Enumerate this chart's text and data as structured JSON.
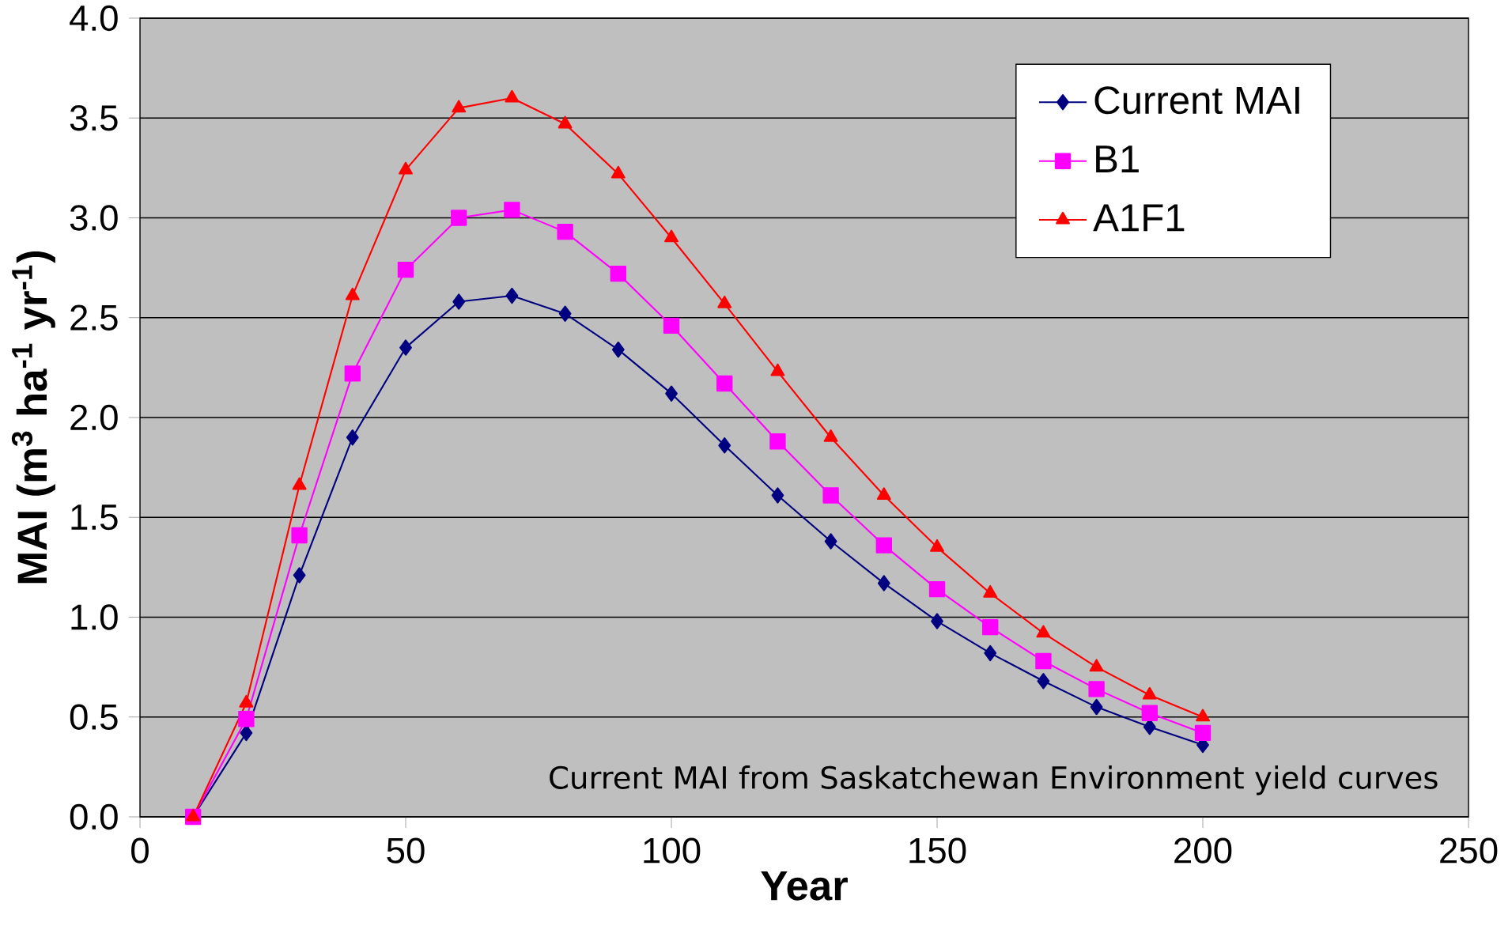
{
  "chart_data": {
    "type": "line",
    "xlabel": "Year",
    "ylabel": "MAI (m$^{3}$ ha$^{-1}$ yr$^{-1}$)",
    "x": [
      10,
      20,
      30,
      40,
      50,
      60,
      70,
      80,
      90,
      100,
      110,
      120,
      130,
      140,
      150,
      160,
      170,
      180,
      190,
      200
    ],
    "series": [
      {
        "name": "Current MAI",
        "color": "#000080",
        "marker": "diamond",
        "values": [
          0.0,
          0.42,
          1.21,
          1.9,
          2.35,
          2.58,
          2.61,
          2.52,
          2.34,
          2.12,
          1.86,
          1.61,
          1.38,
          1.17,
          0.98,
          0.82,
          0.68,
          0.55,
          0.45,
          0.36
        ]
      },
      {
        "name": "B1",
        "color": "#ff00ff",
        "marker": "square",
        "values": [
          0.0,
          0.49,
          1.41,
          2.22,
          2.74,
          3.0,
          3.04,
          2.93,
          2.72,
          2.46,
          2.17,
          1.88,
          1.61,
          1.36,
          1.14,
          0.95,
          0.78,
          0.64,
          0.52,
          0.42
        ]
      },
      {
        "name": "A1F1",
        "color": "#ff0000",
        "marker": "triangle",
        "values": [
          0.0,
          0.57,
          1.66,
          2.61,
          3.24,
          3.55,
          3.6,
          3.47,
          3.22,
          2.9,
          2.57,
          2.23,
          1.9,
          1.61,
          1.35,
          1.12,
          0.92,
          0.75,
          0.61,
          0.5
        ]
      }
    ],
    "xlim": [
      0,
      250
    ],
    "xticks": [
      0,
      50,
      100,
      150,
      200,
      250
    ],
    "ylim": [
      0,
      4
    ],
    "yticks": [
      {
        "value": 0,
        "label": "0.0"
      },
      {
        "value": 0.5,
        "label": "0.5"
      },
      {
        "value": 1,
        "label": "1.0"
      },
      {
        "value": 1.5,
        "label": "1.5"
      },
      {
        "value": 2,
        "label": "2.0"
      },
      {
        "value": 2.5,
        "label": "2.5"
      },
      {
        "value": 3,
        "label": "3.0"
      },
      {
        "value": 3.5,
        "label": "3.5"
      },
      {
        "value": 4,
        "label": "4.0"
      }
    ],
    "grid": "y",
    "legend": "top right",
    "line_style": "solid",
    "annotations": [
      "Current MAI from Saskatchewan Environment yield curves"
    ]
  }
}
